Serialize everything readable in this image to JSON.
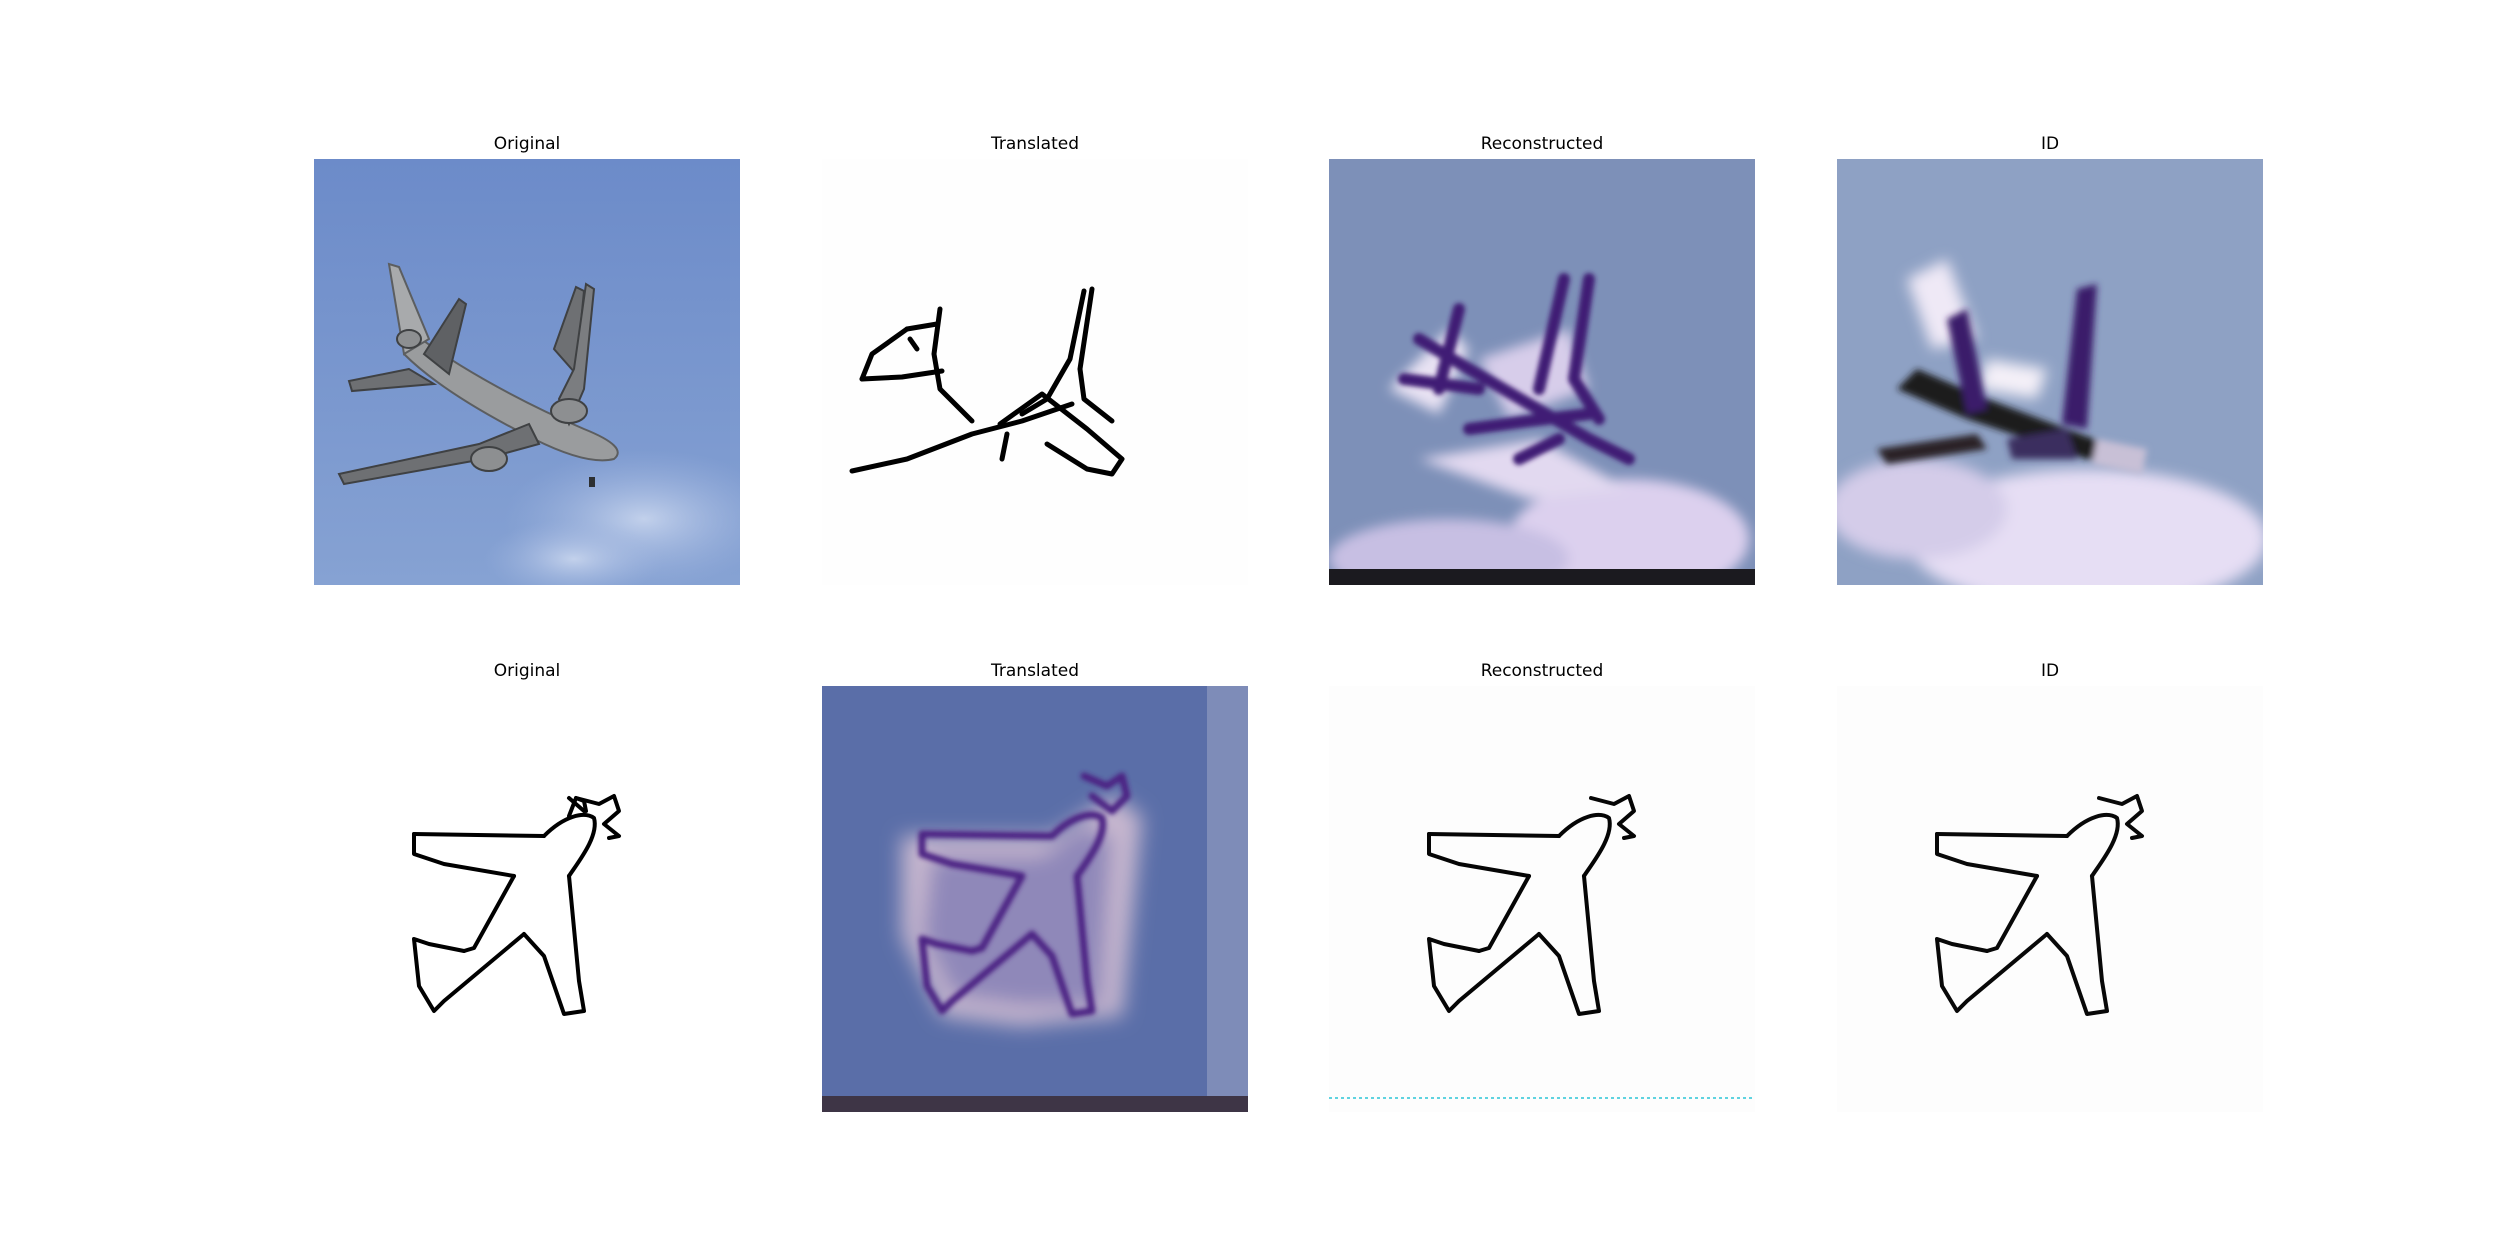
{
  "rows": [
    {
      "panels": [
        {
          "title": "Original",
          "content": "photo-airplane"
        },
        {
          "title": "Translated",
          "content": "sketch-airplane"
        },
        {
          "title": "Reconstructed",
          "content": "blurry-photo-airplane"
        },
        {
          "title": "ID",
          "content": "blurry-photo-airplane"
        }
      ]
    },
    {
      "panels": [
        {
          "title": "Original",
          "content": "sketch-airplane"
        },
        {
          "title": "Translated",
          "content": "blurry-photo-airplane"
        },
        {
          "title": "Reconstructed",
          "content": "sketch-airplane"
        },
        {
          "title": "ID",
          "content": "sketch-airplane"
        }
      ]
    }
  ],
  "colors": {
    "sky": "#6f8fcb",
    "plane": "#8a8c8e",
    "sketch_line": "#000000",
    "blur_purple": "#4a2a7a"
  }
}
